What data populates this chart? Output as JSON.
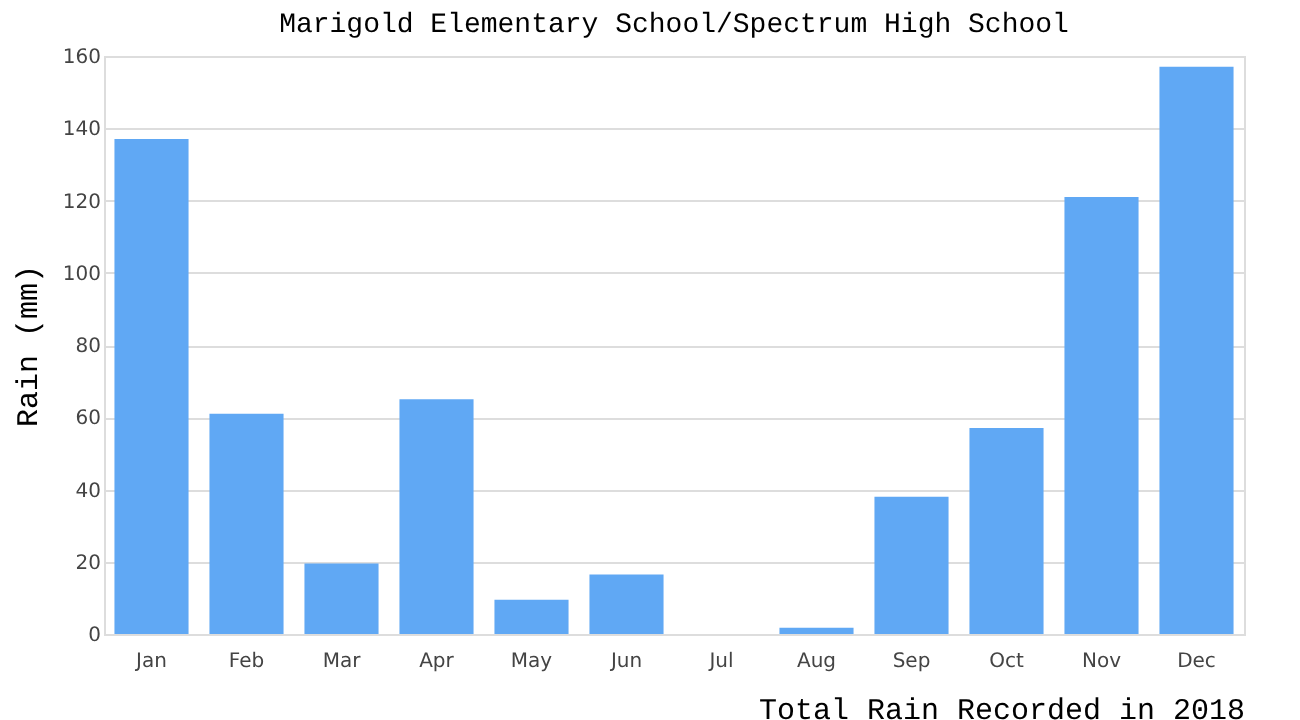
{
  "chart_data": {
    "type": "bar",
    "title": "Marigold Elementary School/Spectrum High School",
    "xlabel": "Total Rain Recorded in 2018",
    "ylabel": "Rain (mm)",
    "categories": [
      "Jan",
      "Feb",
      "Mar",
      "Apr",
      "May",
      "Jun",
      "Jul",
      "Aug",
      "Sep",
      "Oct",
      "Nov",
      "Dec"
    ],
    "values": [
      137,
      61,
      19.5,
      65,
      9.5,
      16.5,
      0,
      1.7,
      38,
      57,
      121,
      157
    ],
    "color": "#60a8f4",
    "ylim": [
      0,
      160
    ],
    "yticks": [
      0,
      20,
      40,
      60,
      80,
      100,
      120,
      140,
      160
    ],
    "grid": "y"
  }
}
